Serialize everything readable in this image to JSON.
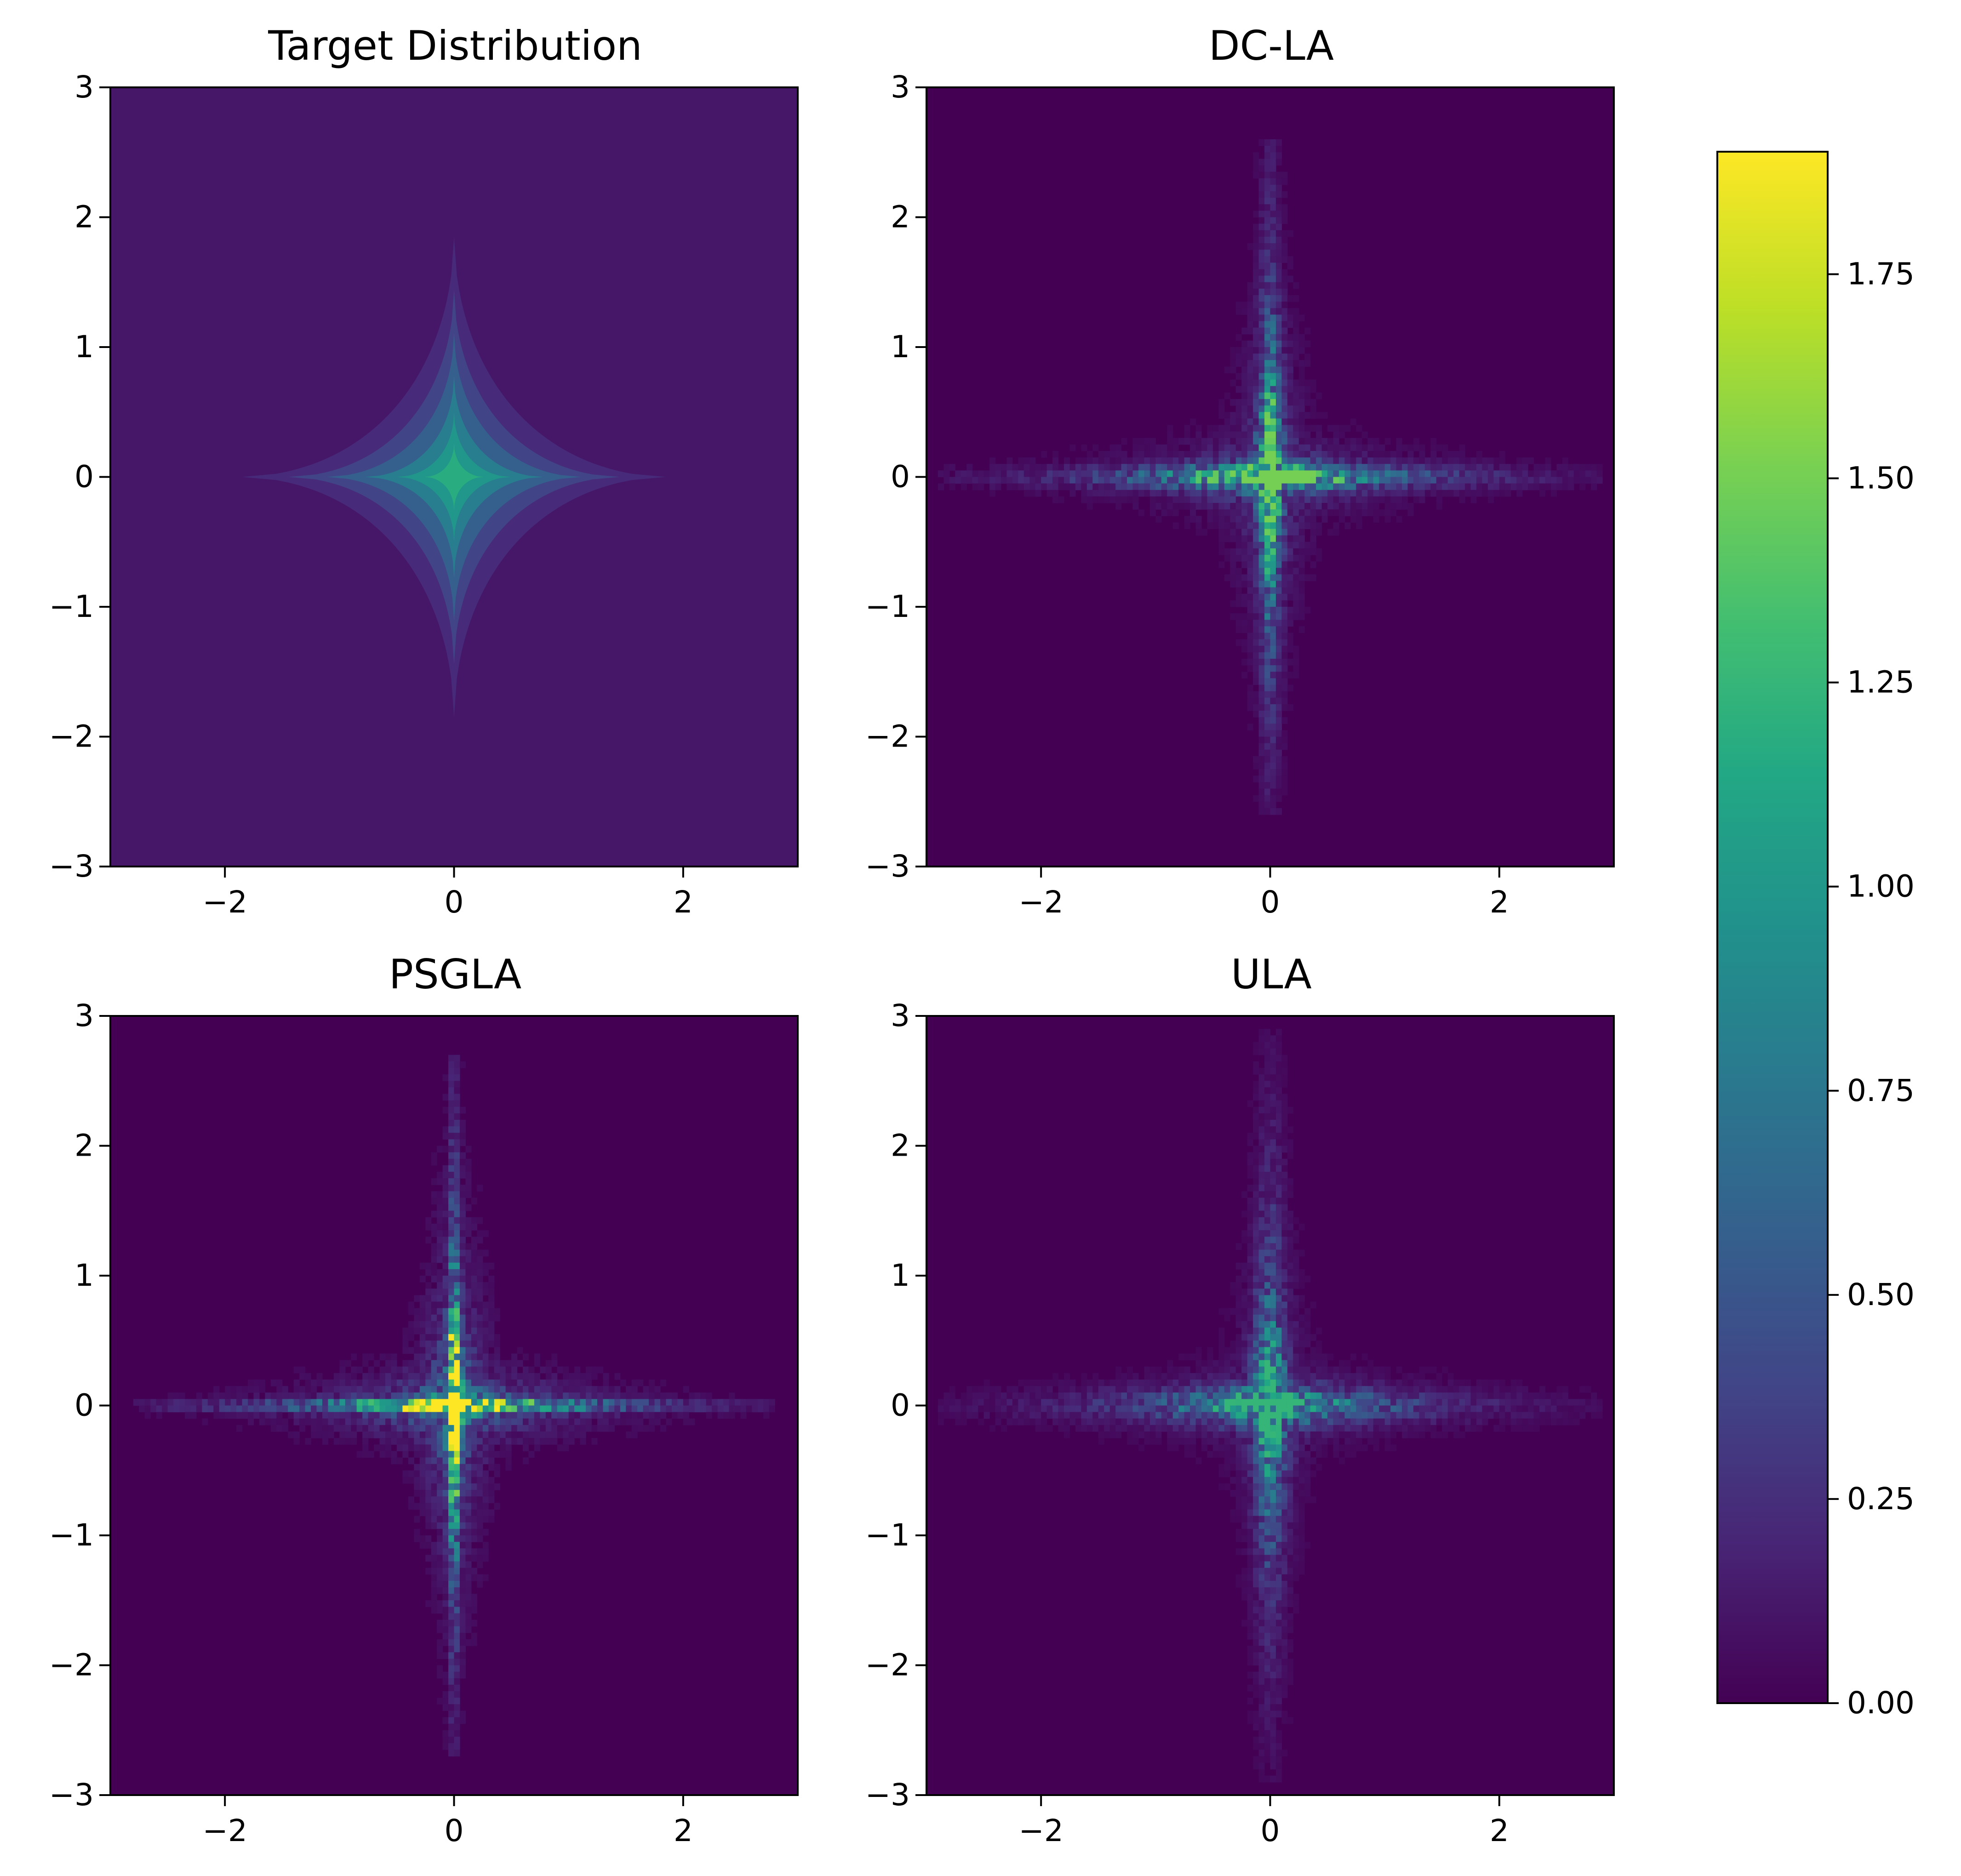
{
  "chart_data": [
    {
      "type": "contour",
      "title": "Target Distribution",
      "xlim": [
        -3,
        3
      ],
      "ylim": [
        -3,
        3
      ],
      "xticks": [
        -2,
        0,
        2
      ],
      "yticks": [
        -3,
        -2,
        -1,
        0,
        1,
        2,
        3
      ],
      "levels": [
        0.0,
        0.25,
        0.5,
        0.75,
        1.0,
        1.25
      ],
      "peak": 1.25,
      "extent": {
        "x_half_width": 1.85,
        "y_half_height": 1.85
      },
      "grid": false
    },
    {
      "type": "heatmap",
      "title": "DC-LA",
      "xlim": [
        -3,
        3
      ],
      "ylim": [
        -3,
        3
      ],
      "xticks": [
        -2,
        0,
        2
      ],
      "yticks": [
        -3,
        -2,
        -1,
        0,
        1,
        2,
        3
      ],
      "bins": 120,
      "peak": 1.5,
      "extent": {
        "x_half_width": 2.9,
        "y_half_height": 2.6
      },
      "grid": false
    },
    {
      "type": "heatmap",
      "title": "PSGLA",
      "xlim": [
        -3,
        3
      ],
      "ylim": [
        -3,
        3
      ],
      "xticks": [
        -2,
        0,
        2
      ],
      "yticks": [
        -3,
        -2,
        -1,
        0,
        1,
        2,
        3
      ],
      "bins": 120,
      "peak": 1.9,
      "extent": {
        "x_half_width": 2.8,
        "y_half_height": 2.7
      },
      "grid": false
    },
    {
      "type": "heatmap",
      "title": "ULA",
      "xlim": [
        -3,
        3
      ],
      "ylim": [
        -3,
        3
      ],
      "xticks": [
        -2,
        0,
        2
      ],
      "yticks": [
        -3,
        -2,
        -1,
        0,
        1,
        2,
        3
      ],
      "bins": 120,
      "peak": 1.25,
      "extent": {
        "x_half_width": 2.9,
        "y_half_height": 2.9
      },
      "grid": false
    }
  ],
  "colorbar": {
    "colormap": "viridis",
    "range": [
      0.0,
      1.9
    ],
    "ticks": [
      0.0,
      0.25,
      0.5,
      0.75,
      1.0,
      1.25,
      1.5,
      1.75
    ],
    "tick_labels": [
      "0.00",
      "0.25",
      "0.50",
      "0.75",
      "1.00",
      "1.25",
      "1.50",
      "1.75"
    ]
  }
}
